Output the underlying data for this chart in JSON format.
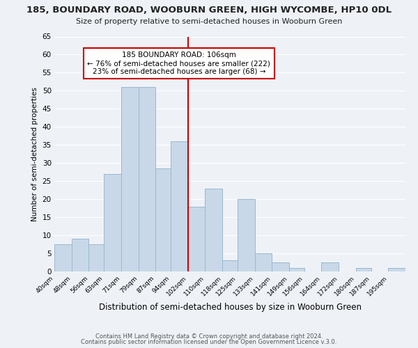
{
  "title": "185, BOUNDARY ROAD, WOOBURN GREEN, HIGH WYCOMBE, HP10 0DL",
  "subtitle": "Size of property relative to semi-detached houses in Wooburn Green",
  "xlabel": "Distribution of semi-detached houses by size in Wooburn Green",
  "ylabel": "Number of semi-detached properties",
  "footer_line1": "Contains HM Land Registry data © Crown copyright and database right 2024.",
  "footer_line2": "Contains public sector information licensed under the Open Government Licence v.3.0.",
  "bin_labels": [
    "40sqm",
    "48sqm",
    "56sqm",
    "63sqm",
    "71sqm",
    "79sqm",
    "87sqm",
    "94sqm",
    "102sqm",
    "110sqm",
    "118sqm",
    "125sqm",
    "133sqm",
    "141sqm",
    "149sqm",
    "156sqm",
    "164sqm",
    "172sqm",
    "180sqm",
    "187sqm",
    "195sqm"
  ],
  "bar_heights": [
    7.5,
    9,
    7.5,
    27,
    51,
    51,
    28.5,
    36,
    18,
    23,
    3,
    20,
    5,
    2.5,
    1,
    0,
    2.5,
    0,
    1,
    0,
    1
  ],
  "bar_color": "#c8d8e8",
  "bar_edge_color": "#9ab8d0",
  "vline_color": "#cc0000",
  "vline_x_bin": 8,
  "annotation_line1": "185 BOUNDARY ROAD: 106sqm",
  "annotation_line2": "← 76% of semi-detached houses are smaller (222)",
  "annotation_line3": "23% of semi-detached houses are larger (68) →",
  "annotation_box_edge_color": "#cc0000",
  "ylim": [
    0,
    65
  ],
  "yticks": [
    0,
    5,
    10,
    15,
    20,
    25,
    30,
    35,
    40,
    45,
    50,
    55,
    60,
    65
  ],
  "background_color": "#eef2f7",
  "grid_color": "#ffffff",
  "bin_edges": [
    40,
    48,
    56,
    63,
    71,
    79,
    87,
    94,
    102,
    110,
    118,
    125,
    133,
    141,
    149,
    156,
    164,
    172,
    180,
    187,
    195,
    203
  ]
}
